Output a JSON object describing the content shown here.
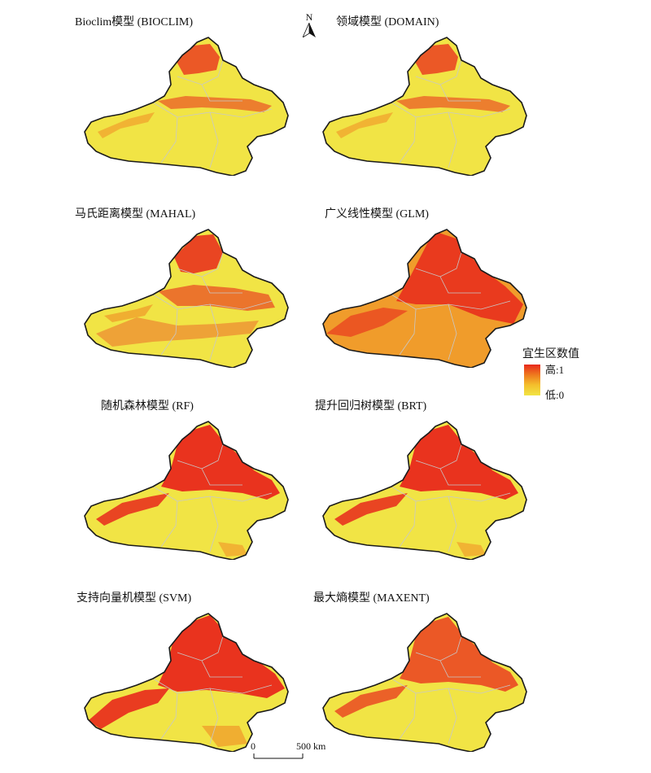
{
  "panels": [
    {
      "title": "Bioclim模型 (BIOCLIM)",
      "pattern": "sparse"
    },
    {
      "title": "领域模型 (DOMAIN)",
      "pattern": "sparse"
    },
    {
      "title": "马氏距离模型 (MAHAL)",
      "pattern": "patchy"
    },
    {
      "title": "广义线性模型 (GLM)",
      "pattern": "broad"
    },
    {
      "title": "随机森林模型 (RF)",
      "pattern": "north-strong"
    },
    {
      "title": "提升回归树模型 (BRT)",
      "pattern": "north-strong"
    },
    {
      "title": "支持向量机模型 (SVM)",
      "pattern": "north-strong-wide"
    },
    {
      "title": "最大熵模型 (MAXENT)",
      "pattern": "north-medium"
    }
  ],
  "north_arrow": {
    "label": "N"
  },
  "legend": {
    "title": "宜生区数值",
    "high_label": "高:1",
    "low_label": "低:0",
    "colors": {
      "high": "#e8291c",
      "mid": "#f4a22a",
      "low": "#f1e445"
    }
  },
  "scale_bar": {
    "zero_label": "0",
    "length_label": "500 km"
  },
  "colors": {
    "suitable_high": "#e8291c",
    "suitable_mid": "#f08a24",
    "background": "#f1e445",
    "border": "#1a1a1a"
  }
}
